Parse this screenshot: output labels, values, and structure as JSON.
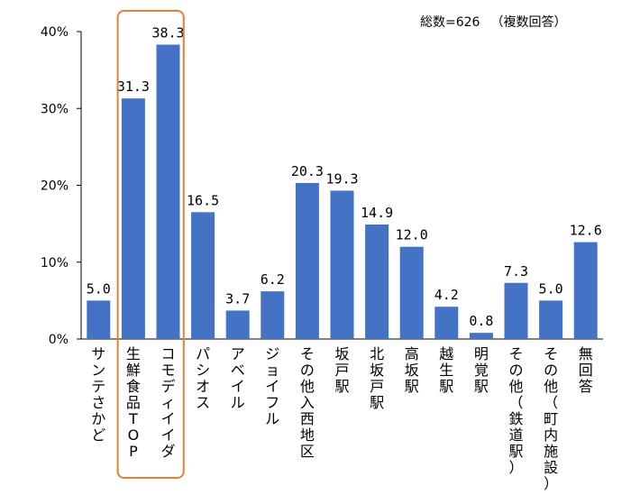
{
  "note": {
    "total": "総数=626",
    "multi": "（複数回答）"
  },
  "colors": {
    "bar": "#4472c4",
    "highlight": "#ed7d31",
    "axis": "#000000"
  },
  "chart_data": {
    "type": "bar",
    "categories": [
      "サンテさかど",
      "生鮮食品TOP",
      "コモディイイダ",
      "パシオス",
      "アベイル",
      "ジョイフル",
      "その他入西地区",
      "坂戸駅",
      "北坂戸駅",
      "高坂駅",
      "越生駅",
      "明覚駅",
      "その他（鉄道駅）",
      "その他（町内施設）",
      "無回答"
    ],
    "values": [
      5.0,
      31.3,
      38.3,
      16.5,
      3.7,
      6.2,
      20.3,
      19.3,
      14.9,
      12.0,
      4.2,
      0.8,
      7.3,
      5.0,
      12.6
    ],
    "value_labels": [
      "5.0",
      "31.3",
      "38.3",
      "16.5",
      "3.7",
      "6.2",
      "20.3",
      "19.3",
      "14.9",
      "12.0",
      "4.2",
      "0.8",
      "7.3",
      "5.0",
      "12.6"
    ],
    "yticks": [
      "0%",
      "10%",
      "20%",
      "30%",
      "40%"
    ],
    "ylim": [
      0,
      40
    ],
    "highlighted": [
      "生鮮食品TOP",
      "コモディイイダ"
    ],
    "grid": false,
    "title": "",
    "xlabel": "",
    "ylabel": ""
  }
}
